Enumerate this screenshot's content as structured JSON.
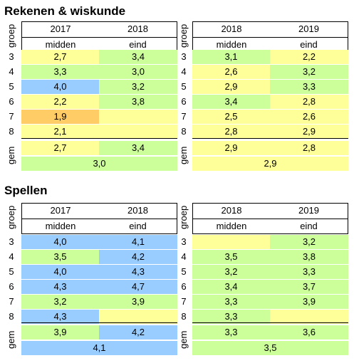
{
  "sections": [
    {
      "title": "Rekenen & wiskunde",
      "groep_label": "groep",
      "gem_label": "gem",
      "groups": [
        "3",
        "4",
        "5",
        "6",
        "7",
        "8"
      ],
      "left": {
        "years": [
          "2017",
          "2018"
        ],
        "cols": [
          "midden",
          "eind"
        ],
        "cells": [
          [
            {
              "v": "2,7",
              "c": "y"
            },
            {
              "v": "3,4",
              "c": "g"
            }
          ],
          [
            {
              "v": "3,3",
              "c": "g"
            },
            {
              "v": "3,0",
              "c": "g"
            }
          ],
          [
            {
              "v": "4,0",
              "c": "b"
            },
            {
              "v": "3,2",
              "c": "g"
            }
          ],
          [
            {
              "v": "2,2",
              "c": "y"
            },
            {
              "v": "3,8",
              "c": "g"
            }
          ],
          [
            {
              "v": "1,9",
              "c": "o"
            },
            {
              "v": "",
              "c": "y"
            }
          ],
          [
            {
              "v": "2,1",
              "c": "y"
            },
            {
              "v": "",
              "c": "y"
            }
          ]
        ],
        "gem": [
          {
            "v": "2,7",
            "c": "y"
          },
          {
            "v": "3,4",
            "c": "g"
          }
        ],
        "avg": {
          "v": "3,0",
          "c": "g"
        }
      },
      "right": {
        "years": [
          "2018",
          "2019"
        ],
        "cols": [
          "midden",
          "eind"
        ],
        "cells": [
          [
            {
              "v": "3,1",
              "c": "g"
            },
            {
              "v": "2,2",
              "c": "y"
            }
          ],
          [
            {
              "v": "2,6",
              "c": "y"
            },
            {
              "v": "3,2",
              "c": "g"
            }
          ],
          [
            {
              "v": "2,9",
              "c": "y"
            },
            {
              "v": "3,3",
              "c": "g"
            }
          ],
          [
            {
              "v": "3,4",
              "c": "g"
            },
            {
              "v": "2,8",
              "c": "y"
            }
          ],
          [
            {
              "v": "2,5",
              "c": "y"
            },
            {
              "v": "2,6",
              "c": "y"
            }
          ],
          [
            {
              "v": "2,8",
              "c": "y"
            },
            {
              "v": "2,9",
              "c": "y"
            }
          ]
        ],
        "gem": [
          {
            "v": "2,9",
            "c": "y"
          },
          {
            "v": "2,8",
            "c": "y"
          }
        ],
        "avg": {
          "v": "2,9",
          "c": "y"
        }
      }
    },
    {
      "title": "Spellen",
      "groep_label": "groep",
      "gem_label": "gem",
      "groups": [
        "3",
        "4",
        "5",
        "6",
        "7",
        "8"
      ],
      "left": {
        "years": [
          "2017",
          "2018"
        ],
        "cols": [
          "midden",
          "eind"
        ],
        "cells": [
          [
            {
              "v": "4,0",
              "c": "b"
            },
            {
              "v": "4,1",
              "c": "b"
            }
          ],
          [
            {
              "v": "3,5",
              "c": "g"
            },
            {
              "v": "4,2",
              "c": "b"
            }
          ],
          [
            {
              "v": "4,0",
              "c": "b"
            },
            {
              "v": "4,3",
              "c": "b"
            }
          ],
          [
            {
              "v": "4,3",
              "c": "b"
            },
            {
              "v": "4,7",
              "c": "b"
            }
          ],
          [
            {
              "v": "3,2",
              "c": "g"
            },
            {
              "v": "3,9",
              "c": "g"
            }
          ],
          [
            {
              "v": "4,3",
              "c": "b"
            },
            {
              "v": "",
              "c": "y"
            }
          ]
        ],
        "gem": [
          {
            "v": "3,9",
            "c": "g"
          },
          {
            "v": "4,2",
            "c": "b"
          }
        ],
        "avg": {
          "v": "4,1",
          "c": "b"
        }
      },
      "right": {
        "years": [
          "2018",
          "2019"
        ],
        "cols": [
          "midden",
          "eind"
        ],
        "cells": [
          [
            {
              "v": "",
              "c": "y"
            },
            {
              "v": "3,2",
              "c": "g"
            }
          ],
          [
            {
              "v": "3,5",
              "c": "g"
            },
            {
              "v": "3,8",
              "c": "g"
            }
          ],
          [
            {
              "v": "3,2",
              "c": "g"
            },
            {
              "v": "3,3",
              "c": "g"
            }
          ],
          [
            {
              "v": "3,4",
              "c": "g"
            },
            {
              "v": "3,7",
              "c": "g"
            }
          ],
          [
            {
              "v": "3,3",
              "c": "g"
            },
            {
              "v": "3,9",
              "c": "g"
            }
          ],
          [
            {
              "v": "3,3",
              "c": "g"
            },
            {
              "v": "",
              "c": "y"
            }
          ]
        ],
        "gem": [
          {
            "v": "3,3",
            "c": "g"
          },
          {
            "v": "3,6",
            "c": "g"
          }
        ],
        "avg": {
          "v": "3,5",
          "c": "g"
        }
      }
    }
  ],
  "colors": {
    "y": "#ffff99",
    "g": "#ccff99",
    "b": "#99ccff",
    "o": "#ffcc66"
  }
}
